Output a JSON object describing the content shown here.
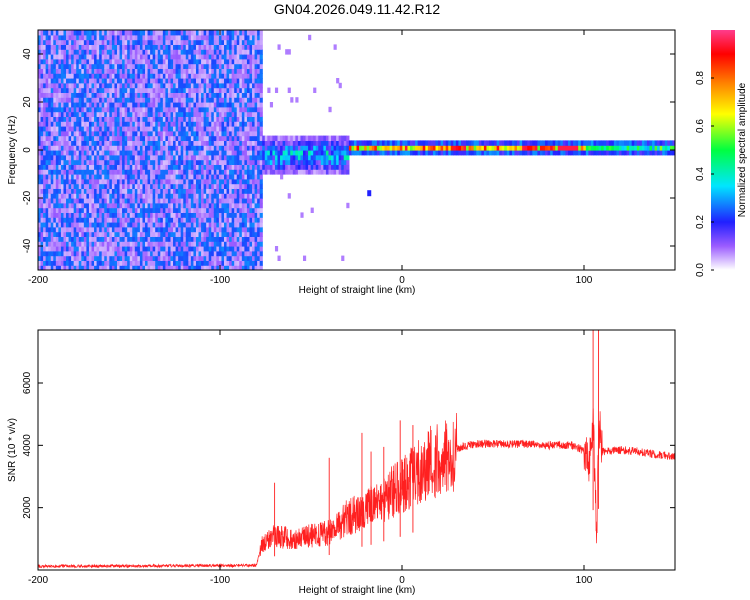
{
  "title": "GN04.2026.049.11.42.R12",
  "chart_data": [
    {
      "type": "heatmap",
      "xlabel": "Height of straight line (km)",
      "ylabel": "Frequency (Hz)",
      "xlim": [
        -200,
        150
      ],
      "ylim": [
        -50,
        50
      ],
      "xticks": [
        "-200",
        "-100",
        "0",
        "100"
      ],
      "xtick_values": [
        -200,
        -100,
        0,
        100
      ],
      "yticks": [
        "-40",
        "-20",
        "0",
        "20",
        "40"
      ],
      "ytick_values": [
        -40,
        -20,
        0,
        20,
        40
      ],
      "colorbar": {
        "label": "Normalized spectral amplitude",
        "range": [
          0,
          1
        ],
        "ticks": [
          "0.0",
          "0.2",
          "0.4",
          "0.6",
          "0.8"
        ],
        "tick_values": [
          0,
          0.2,
          0.4,
          0.6,
          0.8
        ],
        "colors": [
          "#ffffff",
          "#9b5cff",
          "#2020ff",
          "#00e6ff",
          "#00ff40",
          "#ffff00",
          "#ff8000",
          "#ff0000",
          "#ff3c8c"
        ]
      },
      "regions": [
        {
          "x_range": [
            -200,
            -77
          ],
          "description": "broadband noise across all frequencies, amplitude ~0.1-0.3"
        },
        {
          "x_range": [
            -77,
            -30
          ],
          "frequency_center": -3,
          "frequency_halfwidth": 8,
          "peak_amplitude": 0.5
        },
        {
          "x_range": [
            -30,
            150
          ],
          "frequency_center": 0,
          "frequency_halfwidth": 3,
          "peak_amplitude": 0.95
        }
      ],
      "isolated_spots": [
        {
          "x": -18,
          "y": -18,
          "amplitude": 0.2
        }
      ]
    },
    {
      "type": "line",
      "xlabel": "Height of straight line (km)",
      "ylabel": "SNR (10 * v/v)",
      "xlim": [
        -200,
        150
      ],
      "ylim": [
        0,
        7700
      ],
      "xticks": [
        "-200",
        "-100",
        "0",
        "100"
      ],
      "xtick_values": [
        -200,
        -100,
        0,
        100
      ],
      "yticks": [
        "2000",
        "4000",
        "6000"
      ],
      "ytick_values": [
        2000,
        4000,
        6000
      ],
      "line_color": "#ff2020",
      "series_profile": {
        "x": [
          -200,
          -150,
          -100,
          -80,
          -77,
          -70,
          -60,
          -50,
          -40,
          -30,
          -20,
          -10,
          0,
          10,
          20,
          30,
          40,
          60,
          80,
          95,
          100,
          103,
          105,
          107,
          108,
          110,
          120,
          130,
          140,
          150
        ],
        "y": [
          120,
          130,
          140,
          150,
          800,
          1100,
          1000,
          1100,
          1200,
          1700,
          1900,
          2300,
          2700,
          3200,
          3600,
          3900,
          4050,
          4050,
          4000,
          4000,
          3800,
          3500,
          4800,
          1000,
          4900,
          3800,
          3850,
          3800,
          3700,
          3650
        ]
      },
      "spikes": [
        {
          "x": -70,
          "y": 2800
        },
        {
          "x": -40,
          "y": 3600
        },
        {
          "x": -22,
          "y": 4400
        },
        {
          "x": -17,
          "y": 3800
        },
        {
          "x": -10,
          "y": 3950
        },
        {
          "x": -1,
          "y": 4800
        },
        {
          "x": 6,
          "y": 4650
        },
        {
          "x": 105,
          "y": 7700
        },
        {
          "x": 108,
          "y": 7700
        }
      ]
    }
  ]
}
